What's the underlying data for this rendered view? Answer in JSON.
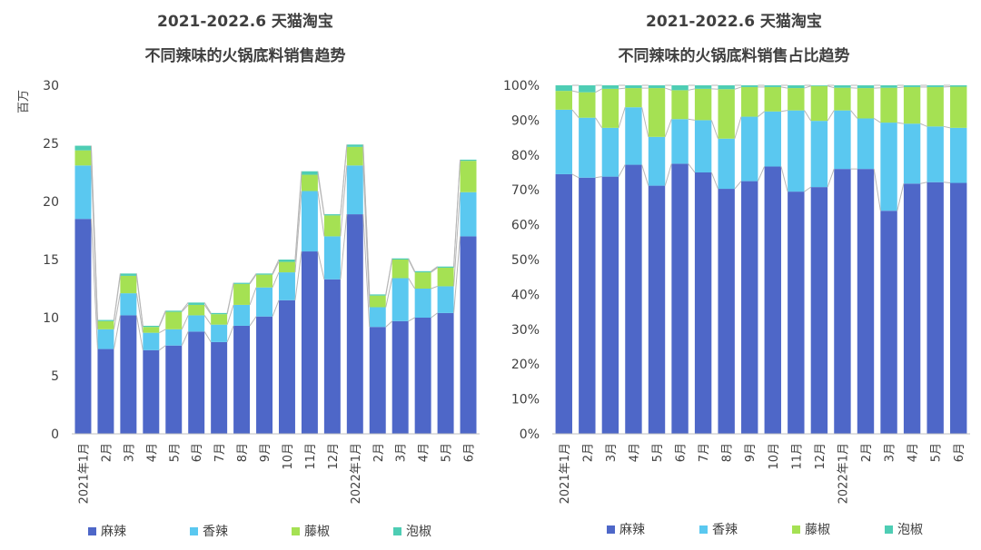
{
  "colors": {
    "mala": "#4e67c8",
    "xiangla": "#5ac8f0",
    "tengjiao": "#a5e153",
    "paojiao": "#4ecdb4",
    "line": "#b7b7b7",
    "axis": "#bfbfbf"
  },
  "chart_data": [
    {
      "type": "bar",
      "stacked": true,
      "title_line1": "2021-2022.6 天猫淘宝",
      "title_line2": "不同辣味的火锅底料销售趋势",
      "ylabel": "百万",
      "ylim": [
        0,
        30
      ],
      "yticks": [
        "0",
        "5",
        "10",
        "15",
        "20",
        "25",
        "30"
      ],
      "categories": [
        "2021年1月",
        "2月",
        "3月",
        "4月",
        "5月",
        "6月",
        "7月",
        "8月",
        "9月",
        "10月",
        "11月",
        "12月",
        "2022年1月",
        "2月",
        "3月",
        "4月",
        "5月",
        "6月"
      ],
      "series": [
        {
          "name": "麻辣",
          "values": [
            18.5,
            7.3,
            10.2,
            7.2,
            7.6,
            8.8,
            7.9,
            9.3,
            10.1,
            11.5,
            15.7,
            13.3,
            18.9,
            9.2,
            9.7,
            10.0,
            10.4,
            17.0
          ]
        },
        {
          "name": "香辣",
          "values": [
            4.6,
            1.7,
            1.9,
            1.5,
            1.4,
            1.4,
            1.5,
            1.8,
            2.5,
            2.4,
            5.2,
            3.7,
            4.2,
            1.7,
            3.7,
            2.5,
            2.3,
            3.8
          ]
        },
        {
          "name": "藤椒",
          "values": [
            1.3,
            0.7,
            1.5,
            0.5,
            1.5,
            0.9,
            0.9,
            1.8,
            1.1,
            0.9,
            1.4,
            1.8,
            1.6,
            1.0,
            1.6,
            1.4,
            1.6,
            2.7
          ]
        },
        {
          "name": "泡椒",
          "values": [
            0.4,
            0.1,
            0.2,
            0.1,
            0.1,
            0.2,
            0.1,
            0.1,
            0.1,
            0.2,
            0.3,
            0.1,
            0.2,
            0.1,
            0.1,
            0.1,
            0.1,
            0.1
          ]
        }
      ],
      "legend": "bottom"
    },
    {
      "type": "bar",
      "stacked": true,
      "percent": true,
      "title_line1": "2021-2022.6 天猫淘宝",
      "title_line2": "不同辣味的火锅底料销售占比趋势",
      "ylim": [
        0,
        100
      ],
      "yticks": [
        "0%",
        "10%",
        "20%",
        "30%",
        "40%",
        "50%",
        "60%",
        "70%",
        "80%",
        "90%",
        "100%"
      ],
      "categories": [
        "2021年1月",
        "2月",
        "3月",
        "4月",
        "5月",
        "6月",
        "7月",
        "8月",
        "9月",
        "10月",
        "11月",
        "12月",
        "2022年1月",
        "2月",
        "3月",
        "4月",
        "5月",
        "6月"
      ],
      "series": [
        {
          "name": "麻辣",
          "values": [
            74.5,
            73.5,
            73.8,
            77.2,
            71.2,
            77.5,
            75.0,
            70.3,
            72.5,
            76.7,
            69.5,
            70.8,
            76.0,
            76.0,
            64.0,
            71.8,
            72.2,
            72.0
          ]
        },
        {
          "name": "香辣",
          "values": [
            18.5,
            17.2,
            14.0,
            16.5,
            14.0,
            12.8,
            15.0,
            14.4,
            18.5,
            15.8,
            23.3,
            19.0,
            16.8,
            14.5,
            25.3,
            17.2,
            16.0,
            15.8
          ]
        },
        {
          "name": "藤椒",
          "values": [
            5.4,
            7.3,
            11.2,
            5.5,
            14.0,
            8.3,
            9.0,
            14.2,
            8.5,
            7.0,
            6.4,
            10.0,
            6.5,
            8.7,
            10.0,
            10.5,
            11.3,
            11.8
          ]
        },
        {
          "name": "泡椒",
          "values": [
            1.6,
            2.0,
            1.0,
            0.8,
            0.8,
            1.4,
            1.0,
            1.1,
            0.5,
            0.5,
            0.8,
            0.2,
            0.7,
            0.8,
            0.7,
            0.5,
            0.5,
            0.4
          ]
        }
      ],
      "legend": "bottom"
    }
  ]
}
